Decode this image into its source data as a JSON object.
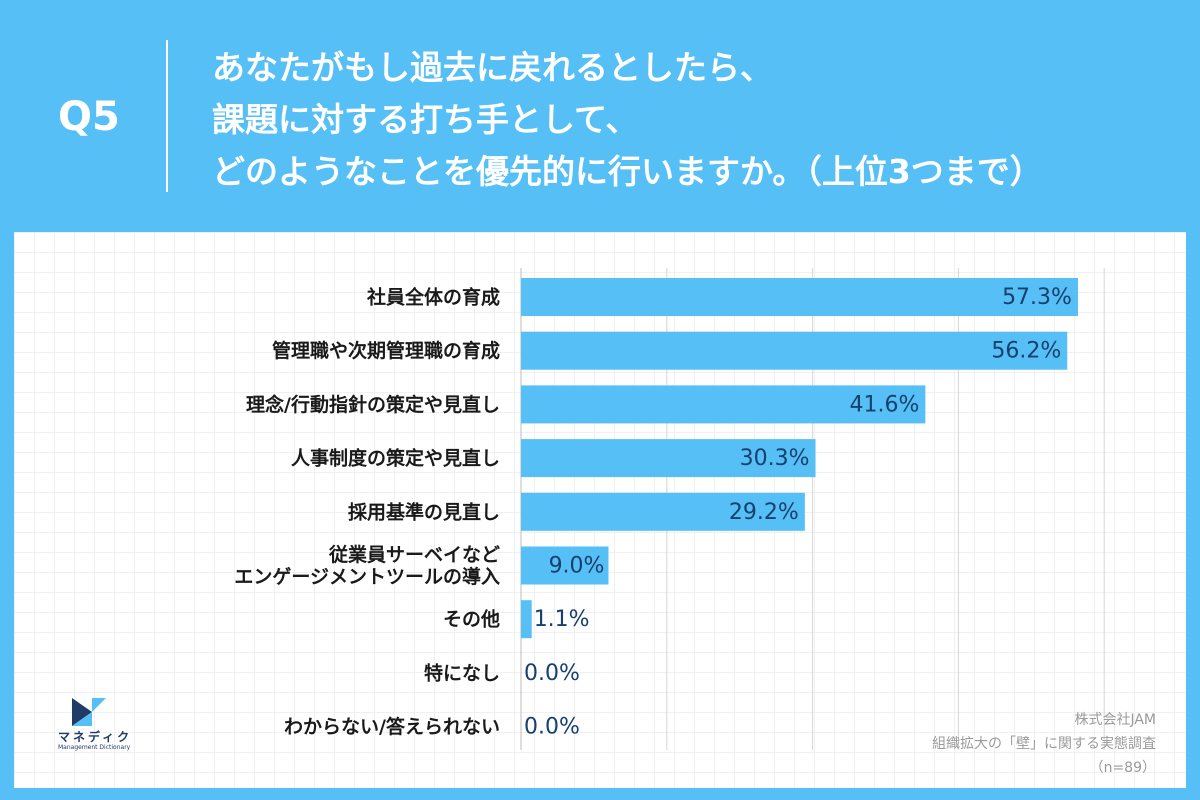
{
  "header": {
    "q_number": "Q5",
    "question_lines": [
      "あなたがもし過去に戻れるとしたら、",
      "課題に対する打ち手として、",
      "どのようなことを優先的に行いますか。（上位3つまで）"
    ]
  },
  "colors": {
    "bar": "#55bff6",
    "header_bg": "#55bff6",
    "value_text": "#16406e"
  },
  "chart_data": {
    "type": "bar",
    "orientation": "horizontal",
    "categories": [
      "社員全体の育成",
      "管理職や次期管理職の育成",
      "理念/行動指針の策定や見直し",
      "人事制度の策定や見直し",
      "採用基準の見直し",
      "従業員サーベイなど\nエンゲージメントツールの導入",
      "その他",
      "特になし",
      "わからない/答えられない"
    ],
    "values": [
      57.3,
      56.2,
      41.6,
      30.3,
      29.2,
      9.0,
      1.1,
      0.0,
      0.0
    ],
    "value_labels": [
      "57.3%",
      "56.2%",
      "41.6%",
      "30.3%",
      "29.2%",
      "9.0%",
      "1.1%",
      "0.0%",
      "0.0%"
    ],
    "xlim": [
      0,
      60
    ],
    "grid": true
  },
  "logo": {
    "name": "マネディク",
    "subtitle": "Management Dictionary"
  },
  "source": {
    "company": "株式会社JAM",
    "survey": "組織拡大の「壁」に関する実態調査",
    "n": "（n=89）"
  }
}
